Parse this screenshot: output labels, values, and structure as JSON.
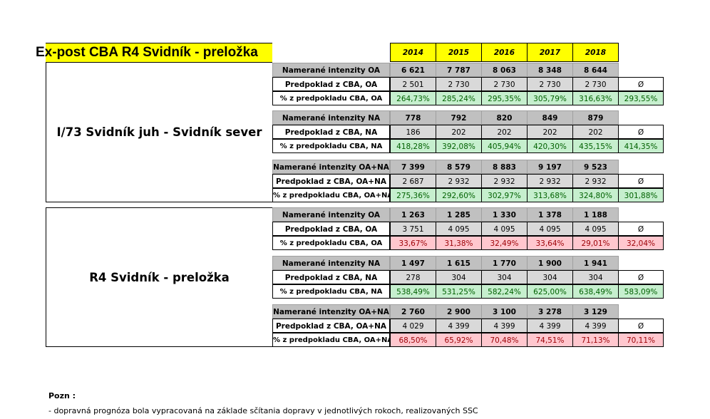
{
  "title": "Ex-post CBA R4 Svidník - preložka",
  "years": [
    "2014",
    "2015",
    "2016",
    "2017",
    "2018"
  ],
  "avg_symbol": "Ø",
  "sections": [
    {
      "name": "I/73 Svidník juh - Svidník sever",
      "groups": [
        {
          "measured_label": "Namerané intenzity OA",
          "measured": [
            "6 621",
            "7 787",
            "8 063",
            "8 348",
            "8 644"
          ],
          "predicted_label": "Predpoklad z CBA, OA",
          "predicted": [
            "2 501",
            "2 730",
            "2 730",
            "2 730",
            "2 730"
          ],
          "percent_label": "% z predpokladu CBA, OA",
          "percent": [
            "264,73%",
            "285,24%",
            "295,35%",
            "305,79%",
            "316,63%"
          ],
          "average": "293,55%",
          "status": "good"
        },
        {
          "measured_label": "Namerané intenzity NA",
          "measured": [
            "778",
            "792",
            "820",
            "849",
            "879"
          ],
          "predicted_label": "Predpoklad z CBA, NA",
          "predicted": [
            "186",
            "202",
            "202",
            "202",
            "202"
          ],
          "percent_label": "% z predpokladu CBA, NA",
          "percent": [
            "418,28%",
            "392,08%",
            "405,94%",
            "420,30%",
            "435,15%"
          ],
          "average": "414,35%",
          "status": "good"
        },
        {
          "measured_label": "Namerané intenzity OA+NA",
          "measured": [
            "7 399",
            "8 579",
            "8 883",
            "9 197",
            "9 523"
          ],
          "predicted_label": "Predpoklad z CBA, OA+NA",
          "predicted": [
            "2 687",
            "2 932",
            "2 932",
            "2 932",
            "2 932"
          ],
          "percent_label": "% z predpokladu CBA, OA+NA",
          "percent": [
            "275,36%",
            "292,60%",
            "302,97%",
            "313,68%",
            "324,80%"
          ],
          "average": "301,88%",
          "status": "good"
        }
      ]
    },
    {
      "name": "R4 Svidník - preložka",
      "groups": [
        {
          "measured_label": "Namerané intenzity OA",
          "measured": [
            "1 263",
            "1 285",
            "1 330",
            "1 378",
            "1 188"
          ],
          "predicted_label": "Predpoklad z CBA, OA",
          "predicted": [
            "3 751",
            "4 095",
            "4 095",
            "4 095",
            "4 095"
          ],
          "percent_label": "% z predpokladu CBA, OA",
          "percent": [
            "33,67%",
            "31,38%",
            "32,49%",
            "33,64%",
            "29,01%"
          ],
          "average": "32,04%",
          "status": "bad"
        },
        {
          "measured_label": "Namerané intenzity NA",
          "measured": [
            "1 497",
            "1 615",
            "1 770",
            "1 900",
            "1 941"
          ],
          "predicted_label": "Predpoklad z CBA, NA",
          "predicted": [
            "278",
            "304",
            "304",
            "304",
            "304"
          ],
          "percent_label": "% z predpokladu CBA, NA",
          "percent": [
            "538,49%",
            "531,25%",
            "582,24%",
            "625,00%",
            "638,49%"
          ],
          "average": "583,09%",
          "status": "good"
        },
        {
          "measured_label": "Namerané intenzity OA+NA",
          "measured": [
            "2 760",
            "2 900",
            "3 100",
            "3 278",
            "3 129"
          ],
          "predicted_label": "Predpoklad z CBA, OA+NA",
          "predicted": [
            "4 029",
            "4 399",
            "4 399",
            "4 399",
            "4 399"
          ],
          "percent_label": "% z predpokladu CBA, OA+NA",
          "percent": [
            "68,50%",
            "65,92%",
            "70,48%",
            "74,51%",
            "71,13%"
          ],
          "average": "70,11%",
          "status": "bad"
        }
      ]
    }
  ],
  "note": {
    "heading": "Pozn :",
    "text": " - dopravná prognóza bola vypracovaná na základe sčítania dopravy v jednotlivých rokoch, realizovaných SSC"
  }
}
